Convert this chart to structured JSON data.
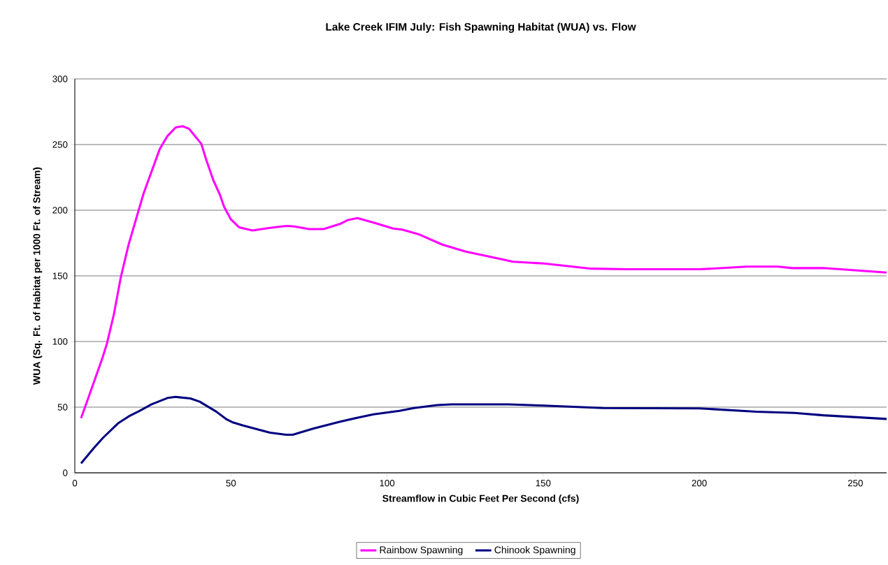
{
  "chart_data": {
    "type": "line",
    "title": "Lake Creek IFIM July: Fish Spawning Habitat (WUA) vs. Flow",
    "xlabel": "Streamflow in Cubic Feet Per Second (cfs)",
    "ylabel": "WUA (Sq. Ft. of Habitat per 1000 Ft. of Stream)",
    "xlim": [
      0,
      260
    ],
    "ylim": [
      0,
      300
    ],
    "xticks": [
      0,
      50,
      100,
      150,
      200,
      250
    ],
    "yticks": [
      0,
      50,
      100,
      150,
      200,
      250,
      300
    ],
    "grid": "y",
    "legend": "bottom",
    "marker": "none",
    "line_style": "solid",
    "series": [
      {
        "name": "Rainbow Spawning",
        "color": "#ff00ff",
        "x": [
          2,
          4.7,
          9,
          10.3,
          12.5,
          14.7,
          17.2,
          22,
          27.2,
          29.7,
          32.3,
          34.5,
          36.6,
          40.5,
          42.2,
          44.4,
          46.5,
          47.8,
          50,
          52.6,
          56.9,
          62.5,
          67.7,
          70.3,
          75,
          79.7,
          85,
          87.5,
          90.5,
          95.7,
          102,
          104.8,
          110,
          117.7,
          125.2,
          130.5,
          140.4,
          150.2,
          165.4,
          176.7,
          200,
          215.3,
          225.2,
          229.8,
          239.7,
          260
        ],
        "values": [
          41.6,
          59.6,
          88.6,
          98.6,
          120.6,
          148.6,
          173.6,
          212.6,
          246.6,
          256.6,
          263,
          264,
          262,
          250.6,
          237.6,
          222.6,
          211.6,
          202.6,
          193,
          187,
          184.6,
          186.6,
          188,
          187.6,
          185.6,
          185.6,
          189.6,
          192.6,
          194,
          190.6,
          186,
          185.2,
          181.8,
          173.8,
          168.5,
          165.8,
          160.8,
          159.4,
          155.5,
          155,
          155,
          157,
          157,
          155.9,
          156,
          152.5
        ]
      },
      {
        "name": "Chinook Spawning",
        "color": "#000080",
        "x": [
          2,
          6,
          9,
          13.8,
          17.7,
          20.3,
          24.6,
          29.7,
          32.3,
          37,
          40,
          45.3,
          48.7,
          50.4,
          53.9,
          62.5,
          67.7,
          69.8,
          76.3,
          85,
          90.4,
          95.7,
          104,
          108.6,
          116.1,
          120.7,
          138.9,
          150.2,
          169.2,
          200,
          218.3,
          230.5,
          239.7,
          260
        ],
        "values": [
          7.2,
          18.6,
          26.6,
          37.6,
          43.6,
          46.6,
          52.2,
          57,
          57.8,
          56.6,
          54.2,
          46.6,
          40.6,
          38.6,
          36,
          30.6,
          29,
          29,
          33.6,
          39,
          41.9,
          44.5,
          47.2,
          49.3,
          51.6,
          52.1,
          52.1,
          51.2,
          49.3,
          49.1,
          46.5,
          45.6,
          43.8,
          41
        ]
      }
    ]
  }
}
